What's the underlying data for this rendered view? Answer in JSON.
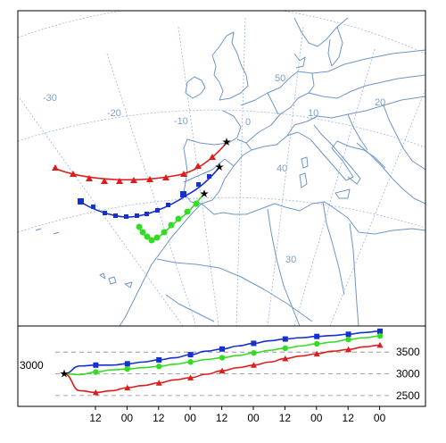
{
  "figure": {
    "colors": {
      "coast": "#6e95c8",
      "graticule": "#9bb6da",
      "frame": "#000000",
      "dashed_ref": "#888888"
    },
    "graticule_labels": {
      "lon": [
        "-30",
        "-20",
        "-10",
        "0",
        "10",
        "20"
      ],
      "lat": [
        "50",
        "40",
        "30"
      ]
    },
    "trajectories": [
      {
        "color": "#dd1c1c",
        "marker": "triangle"
      },
      {
        "color": "#1530cc",
        "marker": "square"
      },
      {
        "color": "#33dd22",
        "marker": "circle"
      }
    ],
    "start_marker": "star-icon"
  },
  "chart_data": {
    "type": "line",
    "y_axis_label_left": "3000",
    "yticks": [
      "3500",
      "3000",
      "2500"
    ],
    "ytick_values": [
      3500,
      3000,
      2500
    ],
    "ylim": [
      2250,
      4100
    ],
    "xticks": [
      "12",
      "00",
      "12",
      "00",
      "12",
      "00",
      "12",
      "00",
      "12",
      "00"
    ],
    "x_hours": [
      0,
      6,
      12,
      18,
      24,
      30,
      36,
      42,
      48,
      54,
      60,
      66,
      72,
      78,
      84,
      90,
      96,
      102,
      108,
      114,
      120
    ],
    "xtick_hours": [
      12,
      24,
      36,
      48,
      60,
      72,
      84,
      96,
      108,
      120
    ],
    "series": [
      {
        "color": "#1530cc",
        "marker": "square",
        "values": [
          3000,
          3180,
          3200,
          3200,
          3230,
          3270,
          3320,
          3370,
          3440,
          3520,
          3570,
          3640,
          3700,
          3760,
          3800,
          3830,
          3860,
          3880,
          3910,
          3950,
          3980
        ]
      },
      {
        "color": "#33dd22",
        "marker": "circle",
        "values": [
          3000,
          2980,
          3040,
          3090,
          3110,
          3140,
          3170,
          3220,
          3270,
          3330,
          3370,
          3420,
          3480,
          3540,
          3590,
          3640,
          3690,
          3730,
          3790,
          3830,
          3870
        ]
      },
      {
        "color": "#dd1c1c",
        "marker": "triangle",
        "values": [
          3000,
          2610,
          2570,
          2610,
          2680,
          2730,
          2790,
          2860,
          2910,
          2990,
          3070,
          3140,
          3200,
          3270,
          3350,
          3410,
          3460,
          3520,
          3560,
          3620,
          3660
        ]
      }
    ]
  }
}
